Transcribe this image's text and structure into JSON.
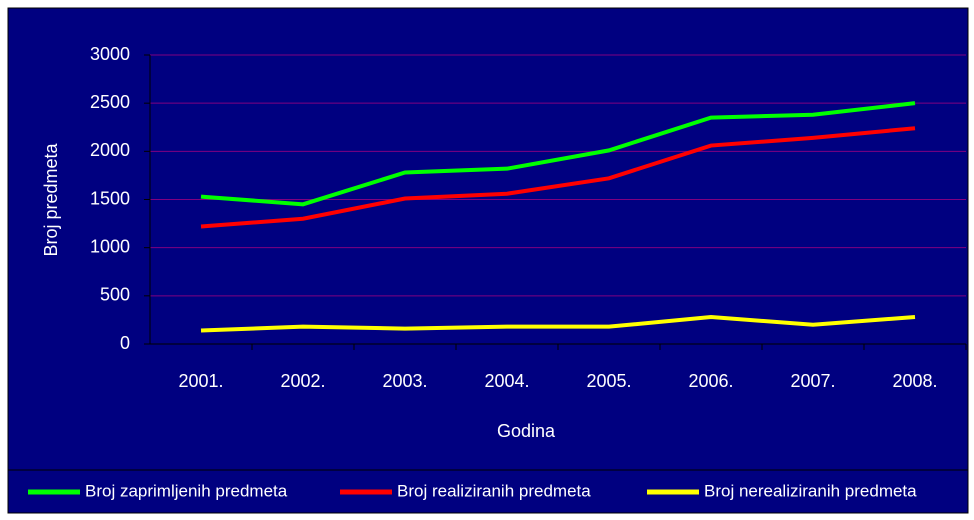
{
  "chart_data": {
    "type": "line",
    "x_label": "Godina",
    "y_label": "Broj predmeta",
    "categories": [
      "2001.",
      "2002.",
      "2003.",
      "2004.",
      "2005.",
      "2006.",
      "2007.",
      "2008."
    ],
    "series": [
      {
        "name": "Broj zaprimljenih predmeta",
        "color": "#00ff00",
        "values": [
          1530,
          1450,
          1780,
          1820,
          2010,
          2350,
          2380,
          2500
        ]
      },
      {
        "name": "Broj realiziranih predmeta",
        "color": "#ff0000",
        "values": [
          1220,
          1300,
          1510,
          1560,
          1720,
          2060,
          2140,
          2240
        ]
      },
      {
        "name": "Broj nerealiziranih predmeta",
        "color": "#ffff00",
        "values": [
          140,
          180,
          160,
          180,
          180,
          280,
          200,
          280
        ]
      }
    ],
    "ylim": [
      0,
      3000
    ],
    "yticks": [
      0,
      500,
      1000,
      1500,
      2000,
      2500,
      3000
    ],
    "grid": true,
    "legend": "bottom"
  }
}
